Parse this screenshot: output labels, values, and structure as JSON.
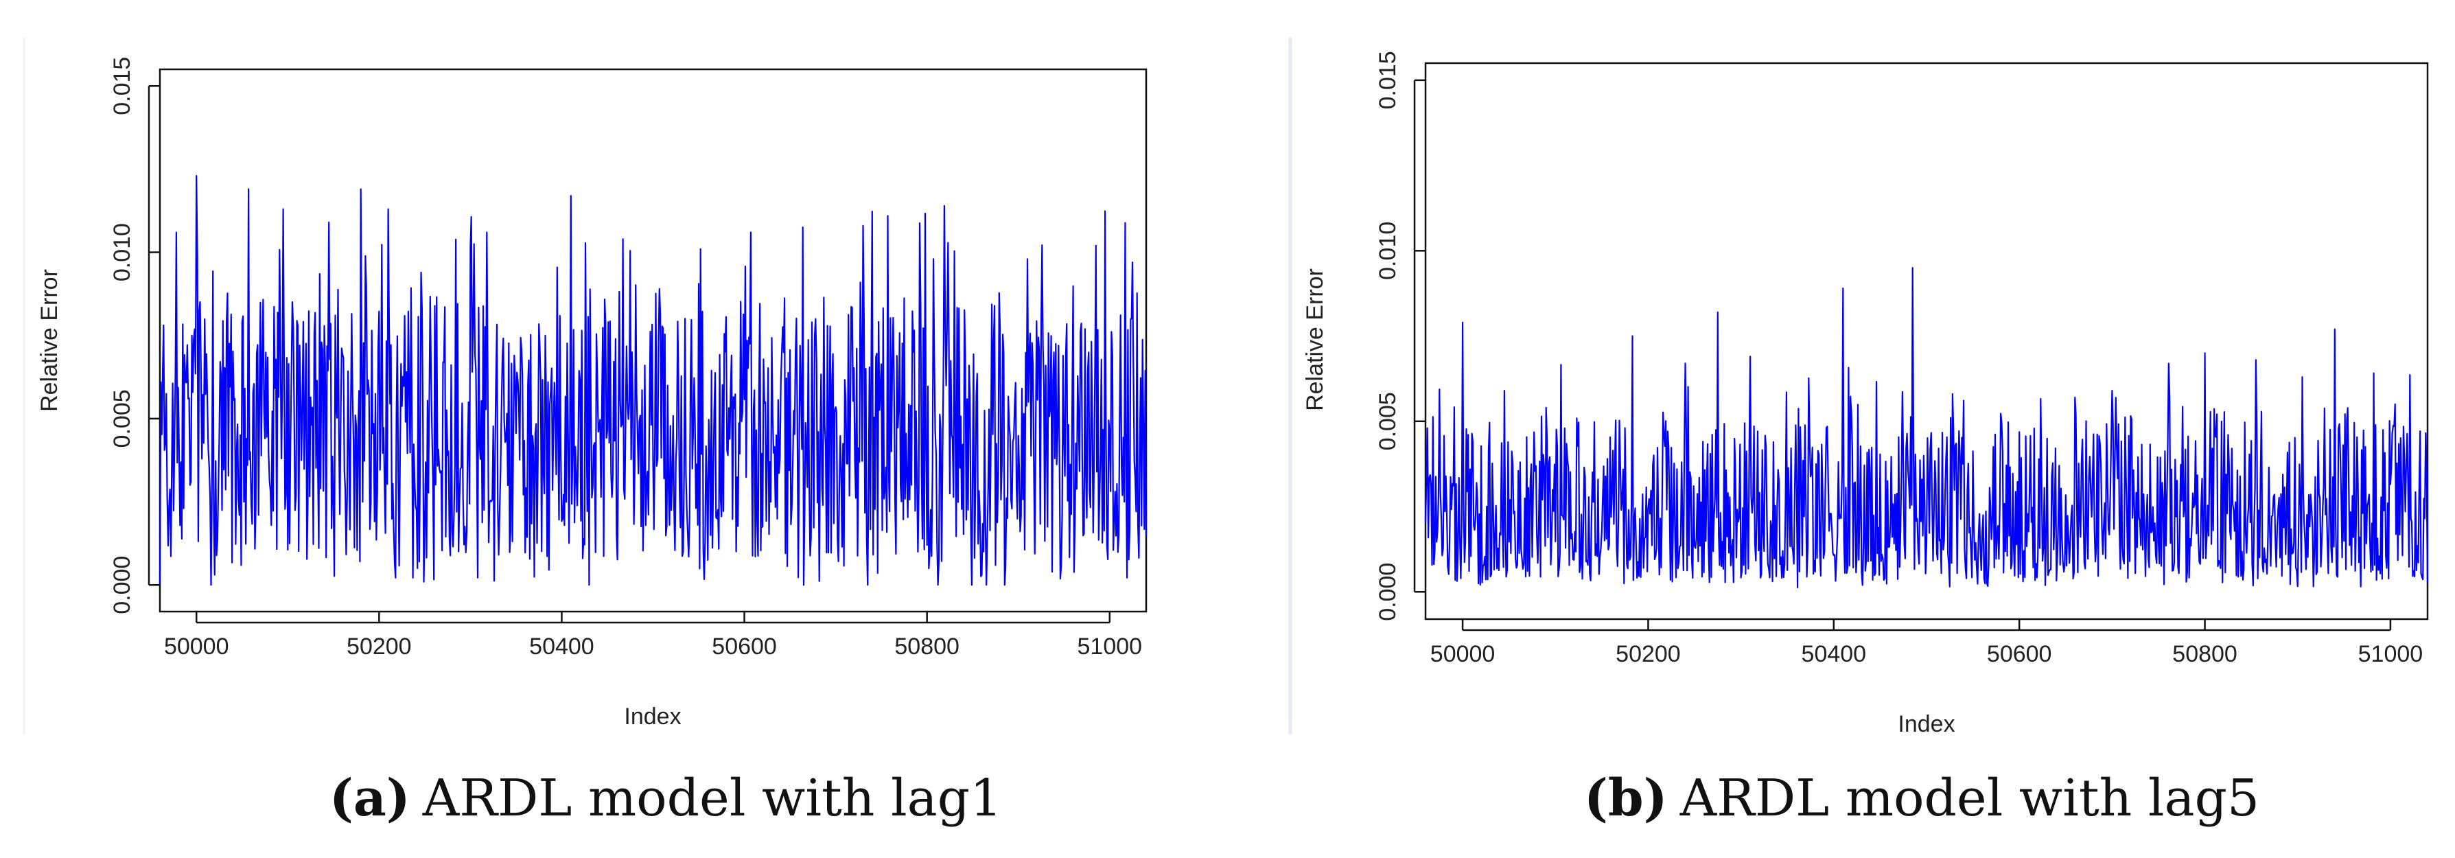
{
  "chart_data": [
    {
      "type": "line",
      "id": "a",
      "caption_tag": "(a)",
      "caption_text": "ARDL model with lag1",
      "xlabel": "Index",
      "ylabel": "Relative Error",
      "xlim": [
        49960,
        51040
      ],
      "ylim": [
        -0.0008,
        0.0155
      ],
      "xticks": [
        50000,
        50200,
        50400,
        50600,
        50800,
        51000
      ],
      "xtick_labels": [
        "50000",
        "50200",
        "50400",
        "50600",
        "50800",
        "51000"
      ],
      "yticks": [
        0.0,
        0.005,
        0.01,
        0.015
      ],
      "ytick_labels": [
        "0.000",
        "0.005",
        "0.010",
        "0.015"
      ],
      "series": [
        {
          "name": "Relative Error",
          "color": "#0000ff",
          "x_start": 49960,
          "x_end": 51040,
          "n_points": 1081,
          "mean": 0.0045,
          "max": 0.0123,
          "min": 0.0,
          "peaks": [
            {
              "x": 49978,
              "y": 0.0106
            },
            {
              "x": 50000,
              "y": 0.0123
            },
            {
              "x": 50057,
              "y": 0.0119
            },
            {
              "x": 50095,
              "y": 0.0113
            },
            {
              "x": 50145,
              "y": 0.0109
            },
            {
              "x": 50180,
              "y": 0.0119
            },
            {
              "x": 50210,
              "y": 0.0113
            },
            {
              "x": 50318,
              "y": 0.0106
            },
            {
              "x": 50410,
              "y": 0.0117
            },
            {
              "x": 50467,
              "y": 0.0104
            },
            {
              "x": 50552,
              "y": 0.0101
            },
            {
              "x": 50607,
              "y": 0.0106
            },
            {
              "x": 50730,
              "y": 0.0108
            },
            {
              "x": 50757,
              "y": 0.0111
            },
            {
              "x": 50807,
              "y": 0.0098
            },
            {
              "x": 50910,
              "y": 0.0098
            },
            {
              "x": 50985,
              "y": 0.0102
            },
            {
              "x": 51025,
              "y": 0.0097
            }
          ]
        }
      ]
    },
    {
      "type": "line",
      "id": "b",
      "caption_tag": "(b)",
      "caption_text": "ARDL model with lag5",
      "xlabel": "Index",
      "ylabel": "Relative Error",
      "xlim": [
        49960,
        51040
      ],
      "ylim": [
        -0.0008,
        0.0155
      ],
      "xticks": [
        50000,
        50200,
        50400,
        50600,
        50800,
        51000
      ],
      "xtick_labels": [
        "50000",
        "50200",
        "50400",
        "50600",
        "50800",
        "51000"
      ],
      "yticks": [
        0.0,
        0.005,
        0.01,
        0.015
      ],
      "ytick_labels": [
        "0.000",
        "0.005",
        "0.010",
        "0.015"
      ],
      "series": [
        {
          "name": "Relative Error",
          "color": "#0000ff",
          "x_start": 49960,
          "x_end": 51040,
          "n_points": 1081,
          "mean": 0.0022,
          "max": 0.0095,
          "min": 0.0,
          "peaks": [
            {
              "x": 49962,
              "y": 0.0048
            },
            {
              "x": 50000,
              "y": 0.0079
            },
            {
              "x": 50045,
              "y": 0.0059
            },
            {
              "x": 50090,
              "y": 0.0054
            },
            {
              "x": 50183,
              "y": 0.0075
            },
            {
              "x": 50240,
              "y": 0.0067
            },
            {
              "x": 50275,
              "y": 0.0082
            },
            {
              "x": 50310,
              "y": 0.0069
            },
            {
              "x": 50410,
              "y": 0.0089
            },
            {
              "x": 50485,
              "y": 0.0095
            },
            {
              "x": 50528,
              "y": 0.0058
            },
            {
              "x": 50660,
              "y": 0.0057
            },
            {
              "x": 50700,
              "y": 0.0059
            },
            {
              "x": 50800,
              "y": 0.007
            },
            {
              "x": 50855,
              "y": 0.0068
            },
            {
              "x": 50905,
              "y": 0.0063
            },
            {
              "x": 50940,
              "y": 0.0077
            },
            {
              "x": 51005,
              "y": 0.0055
            }
          ]
        }
      ]
    }
  ]
}
